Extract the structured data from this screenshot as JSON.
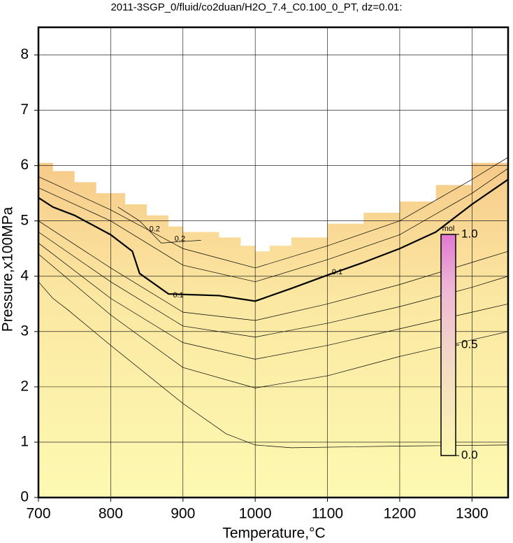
{
  "chart_data": {
    "type": "contour",
    "title": "2011-3SGP_0/fluid/co2duan/H2O_7.4_C0.100_0_PT, dz=0.01:",
    "x_label": "Temperature,°C",
    "y_label": "Pressure,x100MPa",
    "xlim": [
      700,
      1350
    ],
    "ylim": [
      0,
      8.5
    ],
    "xticks": [
      700,
      800,
      900,
      1000,
      1100,
      1200,
      1300
    ],
    "yticks": [
      0,
      1,
      2,
      3,
      4,
      5,
      6,
      7,
      8
    ],
    "grid": true,
    "domain_boundary": {
      "x": [
        700,
        720,
        750,
        780,
        820,
        850,
        880,
        900,
        950,
        980,
        1000,
        1020,
        1050,
        1100,
        1150,
        1200,
        1250,
        1300,
        1350
      ],
      "y": [
        6.05,
        5.9,
        5.7,
        5.5,
        5.3,
        5.1,
        4.9,
        4.8,
        4.7,
        4.55,
        4.45,
        4.55,
        4.7,
        4.95,
        5.15,
        5.35,
        5.65,
        6.05,
        6.5
      ]
    },
    "contours": [
      {
        "x": [
          700,
          720,
          740,
          800,
          900,
          960,
          1000,
          1050,
          1200,
          1350
        ],
        "y": [
          3.9,
          3.6,
          3.4,
          2.75,
          1.7,
          1.15,
          0.95,
          0.9,
          0.93,
          0.95
        ]
      },
      {
        "x": [
          700,
          800,
          900,
          1000,
          1100,
          1200,
          1300,
          1350
        ],
        "y": [
          4.4,
          3.3,
          2.35,
          1.98,
          2.2,
          2.55,
          2.85,
          3.0
        ]
      },
      {
        "x": [
          700,
          800,
          900,
          1000,
          1100,
          1200,
          1300,
          1350
        ],
        "y": [
          4.6,
          3.6,
          2.8,
          2.5,
          2.75,
          3.05,
          3.35,
          3.5
        ]
      },
      {
        "x": [
          700,
          800,
          900,
          1000,
          1100,
          1200,
          1300,
          1350
        ],
        "y": [
          4.8,
          3.9,
          3.1,
          2.9,
          3.15,
          3.45,
          3.8,
          4.0
        ]
      },
      {
        "x": [
          700,
          800,
          900,
          1000,
          1100,
          1200,
          1300,
          1350
        ],
        "y": [
          5.0,
          4.15,
          3.35,
          3.2,
          3.5,
          3.85,
          4.25,
          4.45
        ]
      },
      {
        "labels": [
          "0.1",
          "0.1"
        ],
        "x": [
          700,
          720,
          750,
          800,
          830,
          840,
          880,
          950,
          1000,
          1050,
          1100,
          1150,
          1200,
          1250,
          1300,
          1350
        ],
        "y": [
          5.42,
          5.25,
          5.1,
          4.75,
          4.45,
          4.05,
          3.68,
          3.65,
          3.55,
          3.78,
          4.02,
          4.25,
          4.5,
          4.8,
          5.3,
          5.75
        ]
      },
      {
        "x": [
          700,
          800,
          900,
          1000,
          1100,
          1200,
          1300,
          1350
        ],
        "y": [
          5.6,
          5.0,
          4.2,
          3.9,
          4.3,
          4.75,
          5.5,
          5.95
        ]
      },
      {
        "x": [
          700,
          800,
          900,
          1000,
          1100,
          1200,
          1300,
          1350
        ],
        "y": [
          5.8,
          5.2,
          4.5,
          4.15,
          4.55,
          5.0,
          5.75,
          6.15
        ]
      },
      {
        "labels": [
          "0.2",
          "0.2"
        ],
        "x": [
          810,
          840,
          855,
          870,
          890,
          925
        ],
        "y": [
          5.25,
          5.0,
          4.8,
          4.6,
          4.62,
          4.65
        ]
      }
    ],
    "colorbar_label": "mol",
    "clim": [
      0,
      1
    ],
    "cticks": [
      {
        "value": 0,
        "label": "0.0"
      },
      {
        "value": 0.5,
        "label": "0.5"
      },
      {
        "value": 1,
        "label": "1.0"
      }
    ]
  }
}
